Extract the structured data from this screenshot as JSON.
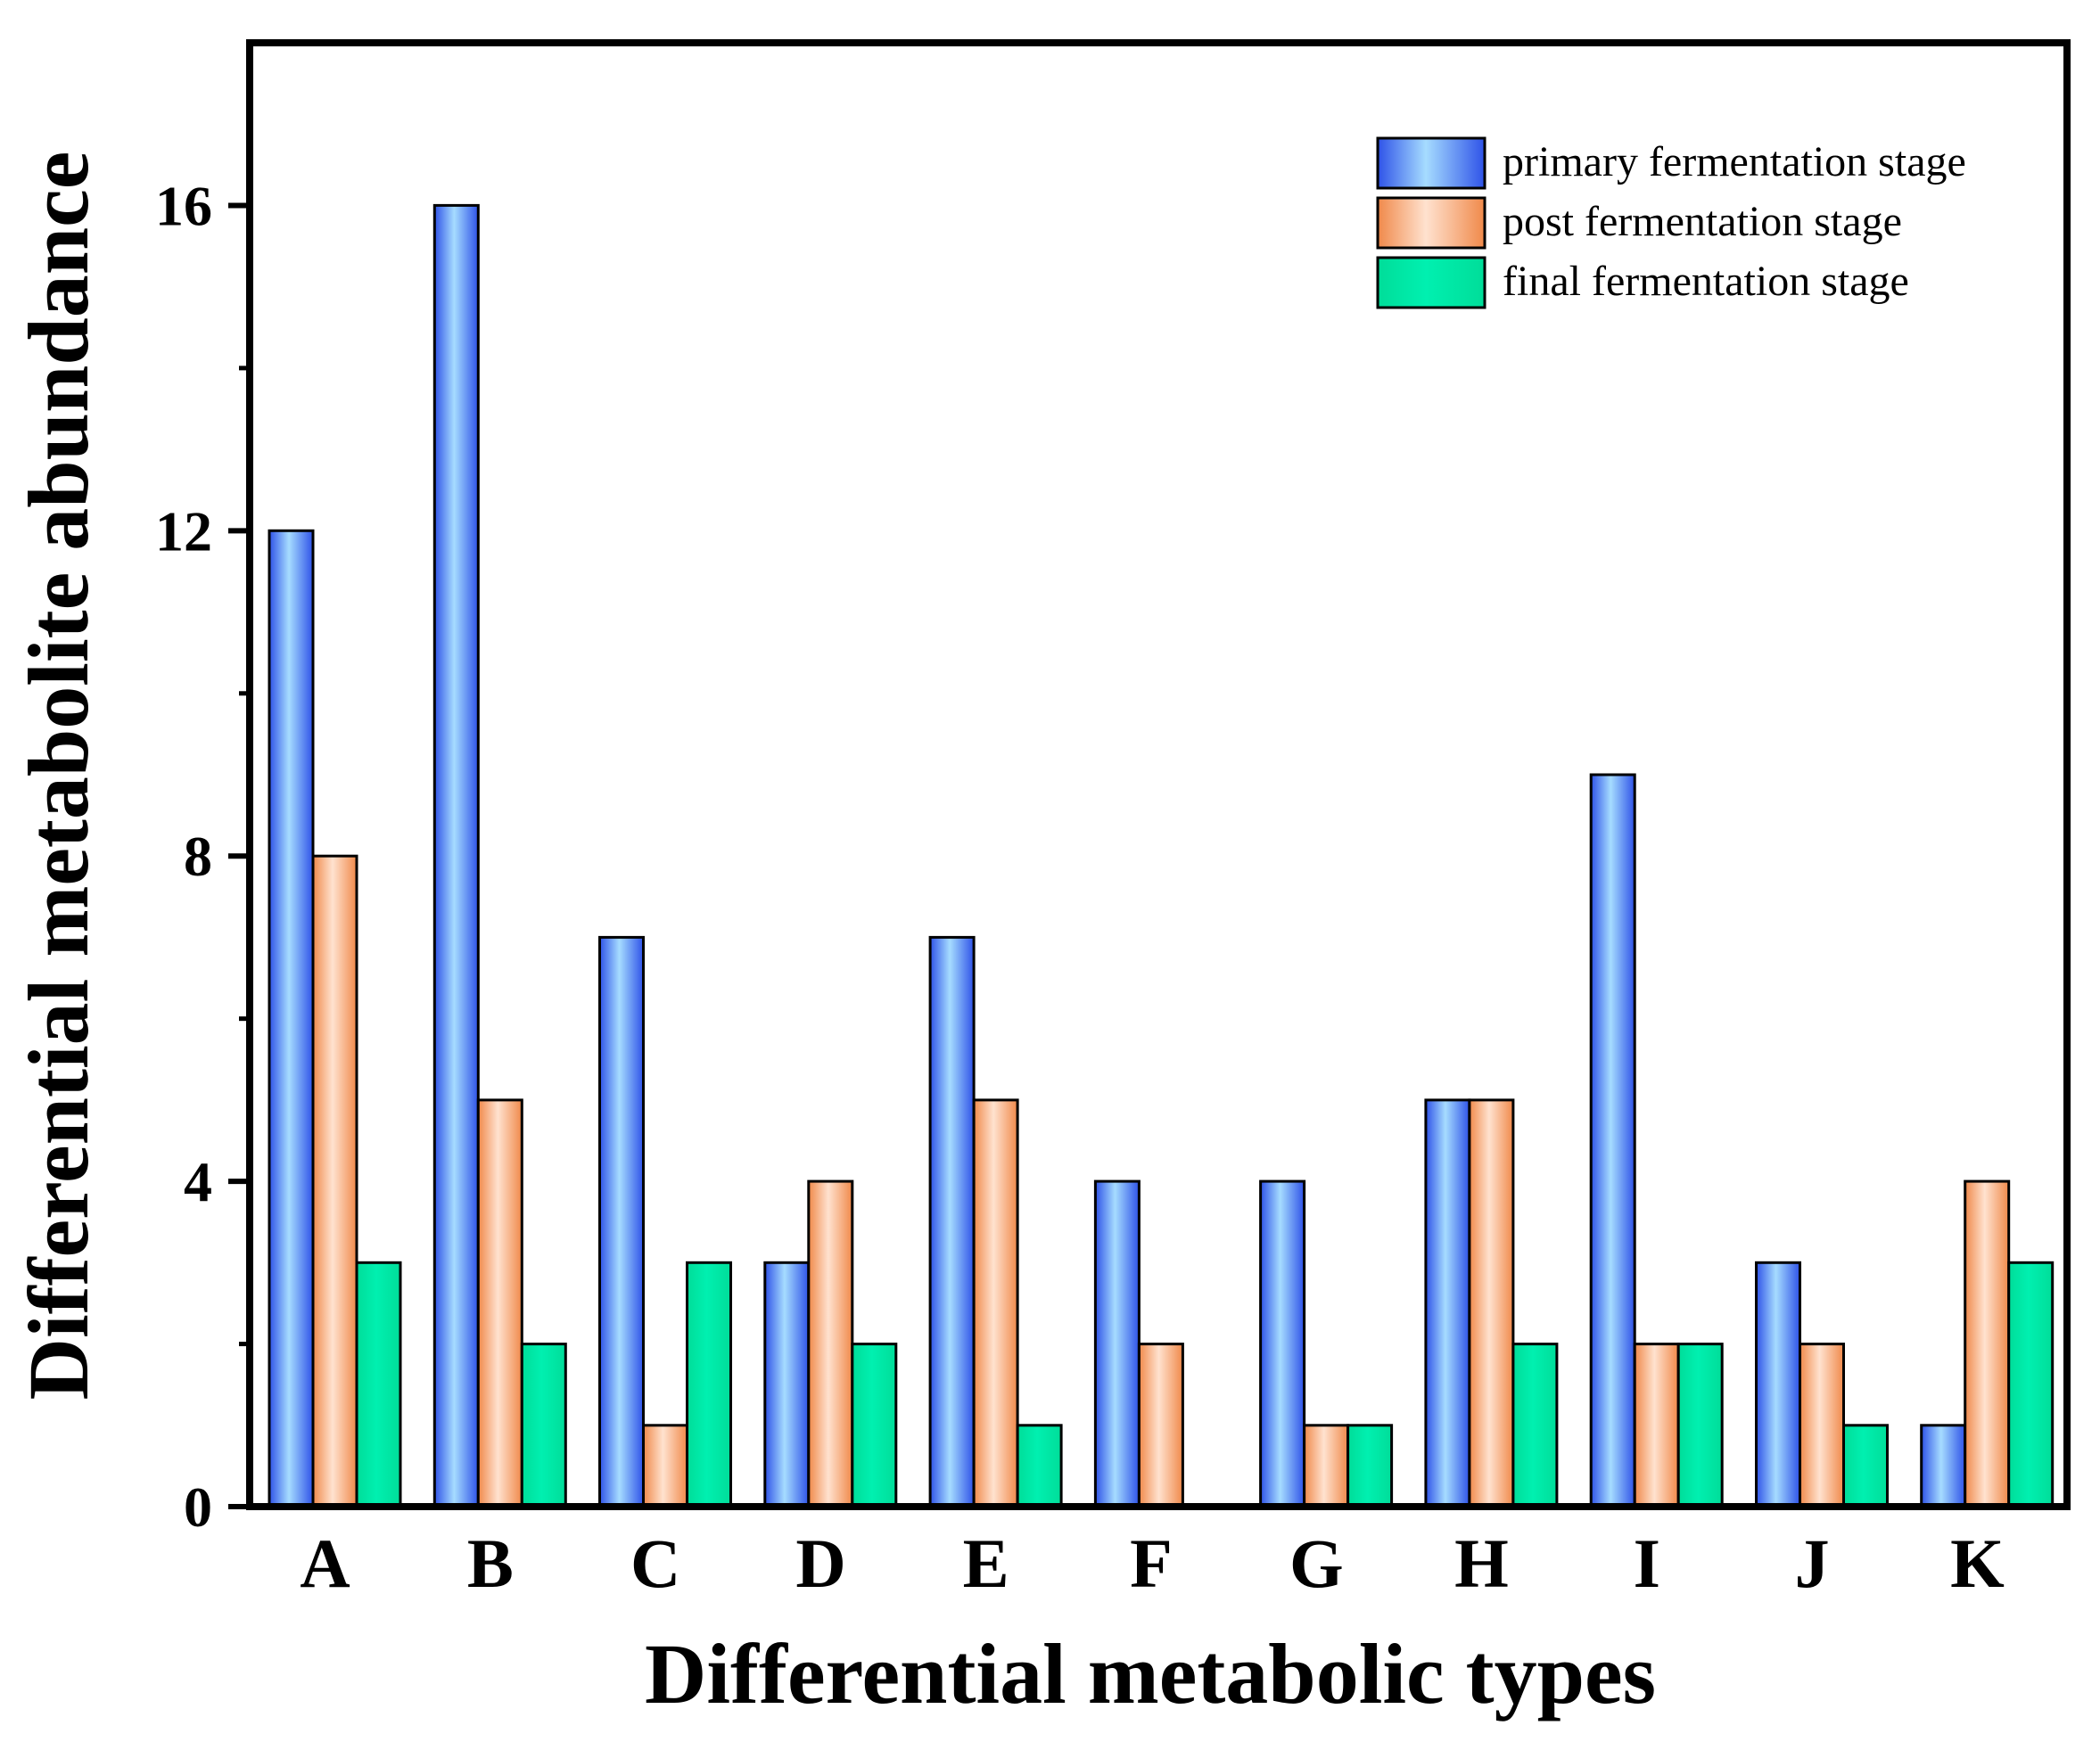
{
  "chart_data": {
    "type": "bar",
    "title": "",
    "xlabel": "Differential metabolic types",
    "ylabel": "Differential metabolite abundance",
    "ylim": [
      0,
      18
    ],
    "yticks": [
      "0",
      "4",
      "8",
      "12",
      "16"
    ],
    "categories": [
      "A",
      "B",
      "C",
      "D",
      "E",
      "F",
      "G",
      "H",
      "I",
      "J",
      "K"
    ],
    "series": [
      {
        "name": "primary fermentation stage",
        "values": [
          12,
          16,
          7,
          3,
          7,
          4,
          4,
          5,
          9,
          3,
          1
        ],
        "colors": {
          "edge": "#1a1a8c",
          "dark": "#2e52e8",
          "light": "#a6dcff"
        }
      },
      {
        "name": "post fermentation stage",
        "values": [
          8,
          5,
          1,
          4,
          5,
          2,
          1,
          5,
          2,
          2,
          4
        ],
        "colors": {
          "edge": "#7a3a10",
          "dark": "#f0894a",
          "light": "#ffe2cf"
        }
      },
      {
        "name": "final fermentation stage",
        "values": [
          3,
          2,
          3,
          2,
          1,
          0,
          1,
          2,
          2,
          1,
          3
        ],
        "colors": {
          "edge": "#0d5a3c",
          "dark": "#00dd99",
          "light": "#00f0b0"
        }
      }
    ],
    "legend": "top-right",
    "grid": false
  }
}
